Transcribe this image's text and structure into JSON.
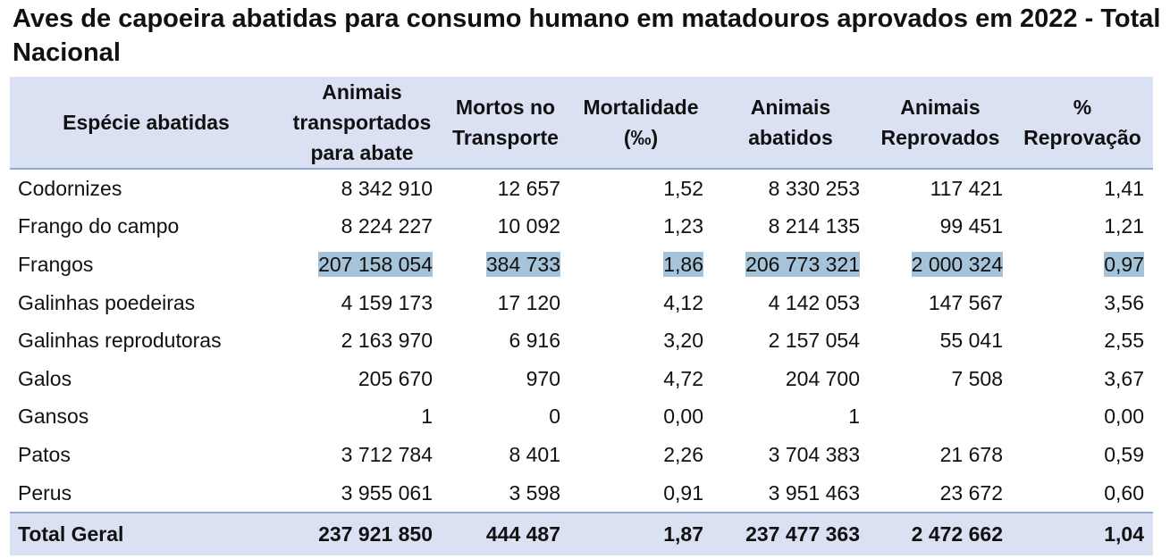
{
  "title": "Aves de capoeira abatidas para consumo humano em matadouros aprovados em 2022 - Total Nacional",
  "columns": [
    "Espécie abatidas",
    "Animais transportados para abate",
    "Mortos no Transporte",
    "Mortalidade (‰)",
    "Animais abatidos",
    "Animais Reprovados",
    "% Reprovação"
  ],
  "rows": [
    {
      "species": "Codornizes",
      "transported": "8 342 910",
      "dead": "12 657",
      "mortality": "1,52",
      "slaughtered": "8 330 253",
      "rejected": "117 421",
      "rejection_pct": "1,41"
    },
    {
      "species": "Frango do campo",
      "transported": "8 224 227",
      "dead": "10 092",
      "mortality": "1,23",
      "slaughtered": "8 214 135",
      "rejected": "99 451",
      "rejection_pct": "1,21"
    },
    {
      "species": "Frangos",
      "transported": "207 158 054",
      "dead": "384 733",
      "mortality": "1,86",
      "slaughtered": "206 773 321",
      "rejected": "2 000 324",
      "rejection_pct": "0,97"
    },
    {
      "species": "Galinhas poedeiras",
      "transported": "4 159 173",
      "dead": "17 120",
      "mortality": "4,12",
      "slaughtered": "4 142 053",
      "rejected": "147 567",
      "rejection_pct": "3,56"
    },
    {
      "species": "Galinhas reprodutoras",
      "transported": "2 163 970",
      "dead": "6 916",
      "mortality": "3,20",
      "slaughtered": "2 157 054",
      "rejected": "55 041",
      "rejection_pct": "2,55"
    },
    {
      "species": "Galos",
      "transported": "205 670",
      "dead": "970",
      "mortality": "4,72",
      "slaughtered": "204 700",
      "rejected": "7 508",
      "rejection_pct": "3,67"
    },
    {
      "species": "Gansos",
      "transported": "1",
      "dead": "0",
      "mortality": "0,00",
      "slaughtered": "1",
      "rejected": "",
      "rejection_pct": "0,00"
    },
    {
      "species": "Patos",
      "transported": "3 712 784",
      "dead": "8 401",
      "mortality": "2,26",
      "slaughtered": "3 704 383",
      "rejected": "21 678",
      "rejection_pct": "0,59"
    },
    {
      "species": "Perus",
      "transported": "3 955 061",
      "dead": "3 598",
      "mortality": "0,91",
      "slaughtered": "3 951 463",
      "rejected": "23 672",
      "rejection_pct": "0,60"
    }
  ],
  "total": {
    "species": "Total Geral",
    "transported": "237 921 850",
    "dead": "444 487",
    "mortality": "1,87",
    "slaughtered": "237 477 363",
    "rejected": "2 472 662",
    "rejection_pct": "1,04"
  },
  "highlighted_row": "Frangos",
  "colors": {
    "header_bg": "#d9e1f2",
    "rule": "#8eaadb",
    "highlight": "#a5c3d9"
  }
}
